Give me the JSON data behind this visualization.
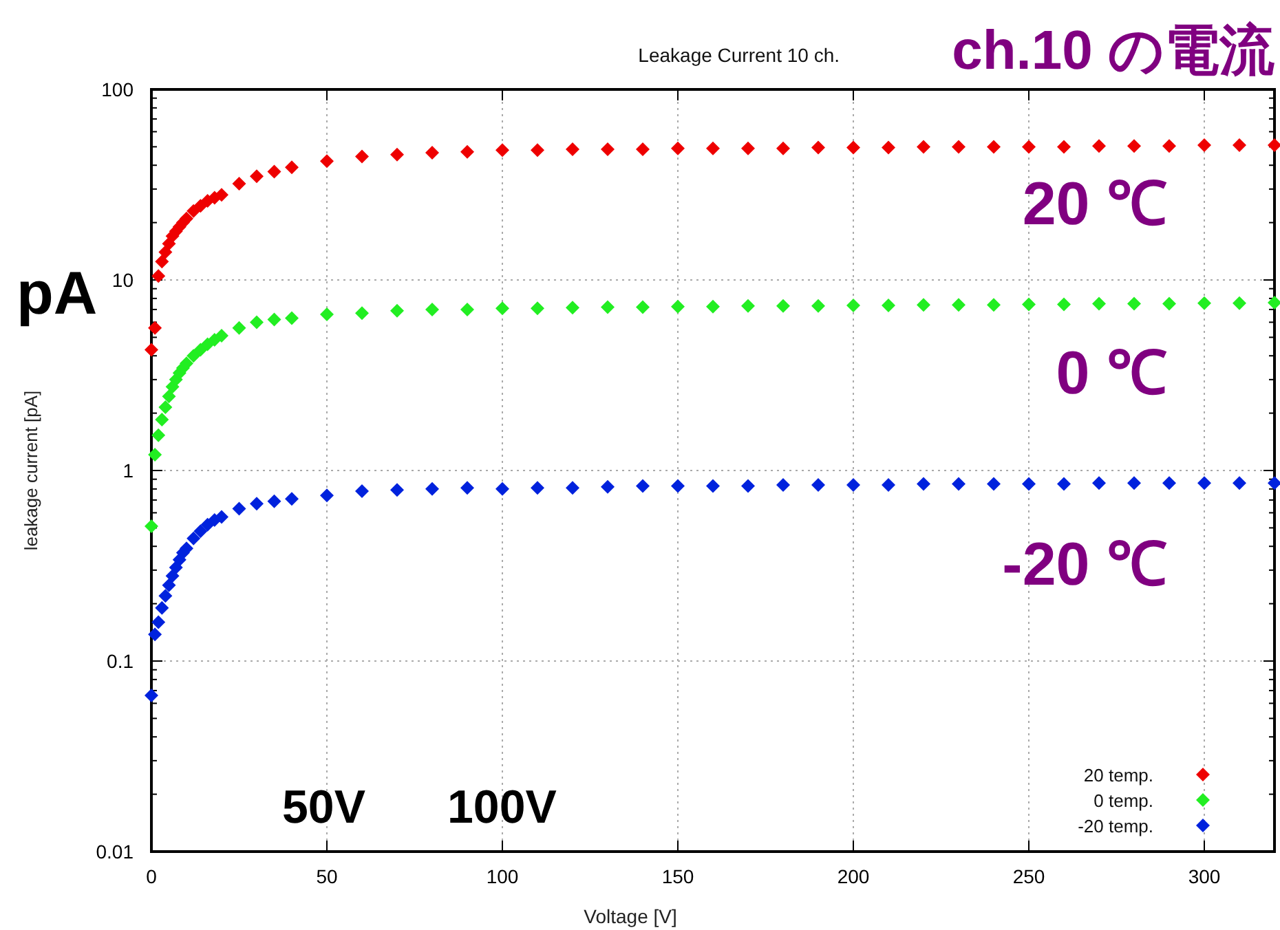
{
  "chart_data": {
    "type": "scatter",
    "title": "Leakage Current 10 ch.",
    "xlabel": "Voltage [V]",
    "ylabel": "leakage current [pA]",
    "annotations": [
      "pA",
      "50V",
      "100V",
      "20 ℃",
      "0 ℃",
      "-20 ℃",
      "ch.10 の電流"
    ],
    "x": [
      0,
      1,
      2,
      3,
      4,
      5,
      6,
      7,
      8,
      9,
      10,
      12,
      14,
      16,
      18,
      20,
      25,
      30,
      35,
      40,
      50,
      60,
      70,
      80,
      90,
      100,
      110,
      120,
      130,
      140,
      150,
      160,
      170,
      180,
      190,
      200,
      210,
      220,
      230,
      240,
      250,
      260,
      270,
      280,
      290,
      300,
      310,
      320
    ],
    "series": [
      {
        "name": "20 temp.",
        "color": "#ee0000",
        "values": [
          4.3,
          5.6,
          10.5,
          12.5,
          14,
          15.5,
          17,
          18,
          19,
          20,
          21,
          23,
          24.5,
          26,
          27,
          28,
          32,
          35,
          37,
          39,
          42,
          44.5,
          45.5,
          46.5,
          47,
          48,
          48,
          48.5,
          48.5,
          48.5,
          49,
          49,
          49,
          49,
          49.5,
          49.5,
          49.5,
          50,
          50,
          50,
          50,
          50,
          50.5,
          50.5,
          50.5,
          51,
          51,
          51
        ]
      },
      {
        "name": "0 temp.",
        "color": "#22ee22",
        "values": [
          0.51,
          1.21,
          1.53,
          1.85,
          2.15,
          2.45,
          2.75,
          3.0,
          3.25,
          3.45,
          3.65,
          4.0,
          4.3,
          4.6,
          4.85,
          5.1,
          5.6,
          6.0,
          6.2,
          6.3,
          6.6,
          6.7,
          6.9,
          7.0,
          7.0,
          7.1,
          7.1,
          7.15,
          7.2,
          7.2,
          7.25,
          7.25,
          7.3,
          7.3,
          7.3,
          7.35,
          7.35,
          7.4,
          7.4,
          7.4,
          7.45,
          7.45,
          7.5,
          7.5,
          7.5,
          7.55,
          7.55,
          7.6
        ]
      },
      {
        "name": "-20 temp.",
        "color": "#0022dd",
        "values": [
          0.066,
          0.138,
          0.16,
          0.19,
          0.22,
          0.25,
          0.28,
          0.31,
          0.34,
          0.37,
          0.39,
          0.44,
          0.48,
          0.52,
          0.55,
          0.57,
          0.63,
          0.67,
          0.69,
          0.71,
          0.74,
          0.78,
          0.79,
          0.8,
          0.81,
          0.8,
          0.81,
          0.81,
          0.82,
          0.83,
          0.83,
          0.83,
          0.83,
          0.84,
          0.84,
          0.84,
          0.84,
          0.85,
          0.85,
          0.85,
          0.85,
          0.85,
          0.86,
          0.86,
          0.86,
          0.86,
          0.86,
          0.86
        ]
      }
    ],
    "xlim": [
      0,
      320
    ],
    "xticks": [
      0,
      50,
      100,
      150,
      200,
      250,
      300
    ],
    "ylim": [
      0.01,
      100
    ],
    "yticks": [
      0.01,
      0.1,
      1,
      10,
      100
    ],
    "log": "y",
    "grid": true,
    "legend": "bottom right",
    "marker": "diamond"
  }
}
